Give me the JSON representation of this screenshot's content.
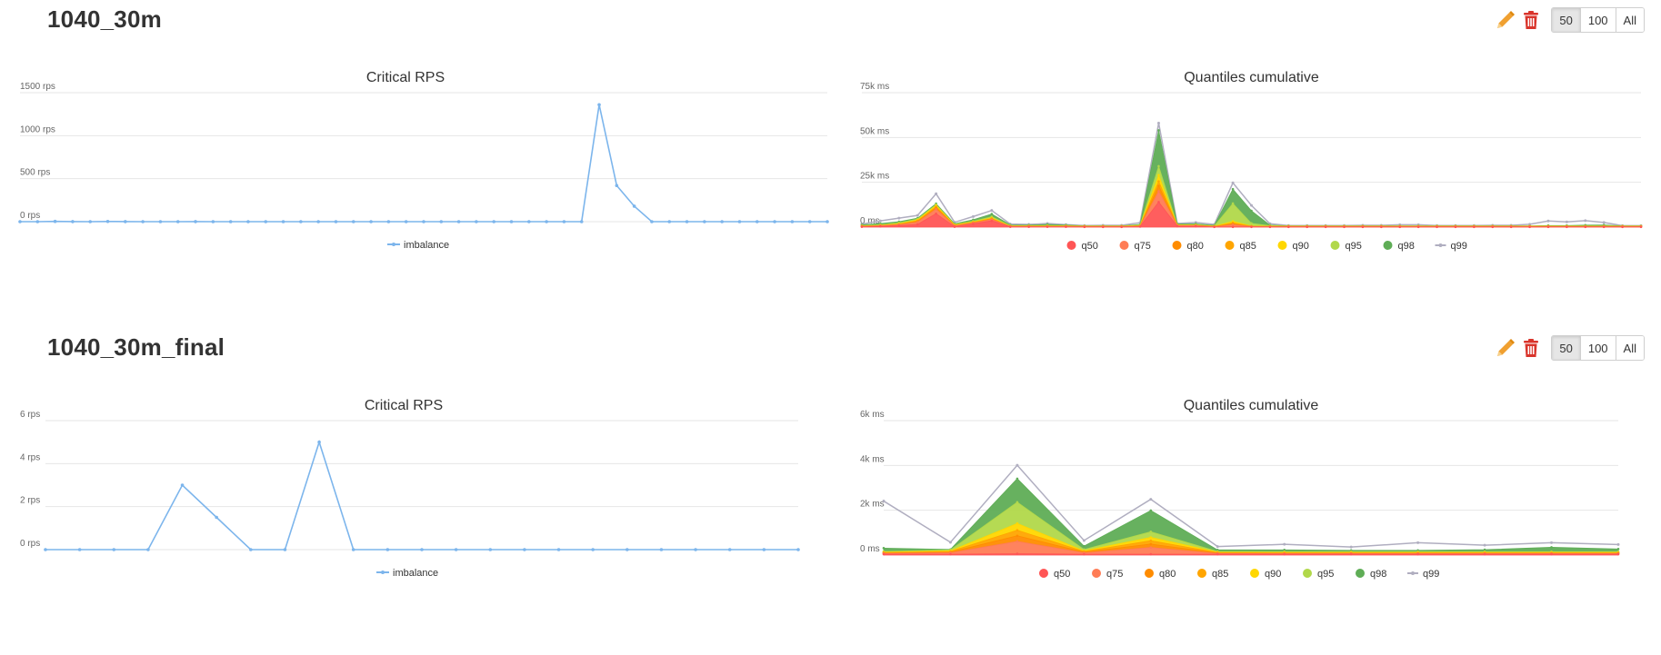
{
  "sections": [
    {
      "title": "1040_30m",
      "buttons": [
        "50",
        "100",
        "All"
      ],
      "active_button": "50",
      "icons": [
        "pencil-icon",
        "trash-icon"
      ]
    },
    {
      "title": "1040_30m_final",
      "buttons": [
        "50",
        "100",
        "All"
      ],
      "active_button": "50",
      "icons": [
        "pencil-icon",
        "trash-icon"
      ]
    }
  ],
  "colors": {
    "imbalance": "#7cb5ec",
    "q50": "#ff5555",
    "q75": "#ff7c55",
    "q80": "#ff8c00",
    "q85": "#ffa500",
    "q90": "#ffd700",
    "q95": "#b1d84a",
    "q98": "#5fad56",
    "q99": "#b0aec0",
    "edit": "#f0a030",
    "delete": "#d9342b"
  },
  "chart_data": [
    {
      "type": "line",
      "title": "Critical RPS",
      "ylim": [
        0,
        1500
      ],
      "yticks": [
        "0 rps",
        "500 rps",
        "1000 rps",
        "1500 rps"
      ],
      "ytick_values": [
        0,
        500,
        1000,
        1500
      ],
      "legend": "bottom-center",
      "grid": true,
      "series": [
        {
          "name": "imbalance",
          "values": [
            0,
            0,
            3,
            1,
            0,
            2,
            1,
            0,
            0,
            0,
            1,
            0,
            0,
            0,
            0,
            0,
            0,
            0,
            0,
            0,
            0,
            0,
            0,
            0,
            0,
            0,
            0,
            0,
            0,
            0,
            0,
            0,
            0,
            1360,
            420,
            180,
            0,
            0,
            0,
            0,
            0,
            0,
            0,
            0,
            0,
            0,
            0
          ]
        }
      ]
    },
    {
      "type": "area",
      "title": "Quantiles cumulative",
      "ylim": [
        0,
        75000
      ],
      "yticks": [
        "0 ms",
        "25k ms",
        "50k ms",
        "75k ms"
      ],
      "ytick_values": [
        0,
        25000,
        50000,
        75000
      ],
      "legend": "bottom-center",
      "grid": true,
      "stacked": true,
      "series": [
        {
          "name": "q50",
          "values": [
            200,
            400,
            800,
            1500,
            7500,
            200,
            1800,
            3500,
            200,
            200,
            200,
            200,
            100,
            100,
            100,
            300,
            14000,
            500,
            500,
            100,
            100,
            100,
            100,
            100,
            100,
            100,
            100,
            100,
            100,
            100,
            100,
            100,
            100,
            100,
            100,
            100,
            100,
            100,
            100,
            100,
            100,
            100,
            100
          ]
        },
        {
          "name": "q75",
          "values": [
            100,
            300,
            500,
            1200,
            2500,
            400,
            500,
            700,
            100,
            100,
            100,
            100,
            100,
            100,
            100,
            200,
            6000,
            300,
            300,
            100,
            1200,
            200,
            100,
            100,
            100,
            100,
            100,
            100,
            100,
            100,
            100,
            100,
            100,
            100,
            100,
            100,
            100,
            100,
            100,
            100,
            100,
            100,
            100
          ]
        },
        {
          "name": "q80",
          "values": [
            100,
            100,
            200,
            500,
            800,
            200,
            200,
            300,
            100,
            100,
            100,
            100,
            100,
            100,
            100,
            100,
            3000,
            100,
            100,
            100,
            600,
            100,
            100,
            100,
            100,
            100,
            100,
            100,
            100,
            100,
            100,
            100,
            100,
            100,
            100,
            100,
            100,
            100,
            100,
            100,
            100,
            100,
            100
          ]
        },
        {
          "name": "q85",
          "values": [
            100,
            100,
            200,
            400,
            600,
            200,
            200,
            300,
            100,
            100,
            100,
            100,
            100,
            100,
            100,
            100,
            2500,
            100,
            100,
            100,
            500,
            100,
            100,
            100,
            100,
            100,
            100,
            100,
            100,
            100,
            100,
            100,
            100,
            100,
            100,
            100,
            100,
            100,
            100,
            100,
            100,
            100,
            100
          ]
        },
        {
          "name": "q90",
          "values": [
            100,
            100,
            200,
            400,
            700,
            200,
            200,
            400,
            100,
            100,
            100,
            100,
            100,
            100,
            100,
            100,
            3500,
            100,
            100,
            100,
            800,
            100,
            100,
            100,
            100,
            100,
            100,
            100,
            100,
            100,
            100,
            100,
            100,
            100,
            100,
            100,
            100,
            100,
            100,
            100,
            100,
            100,
            100
          ]
        },
        {
          "name": "q95",
          "values": [
            200,
            300,
            500,
            500,
            400,
            300,
            400,
            600,
            200,
            200,
            300,
            200,
            100,
            100,
            100,
            300,
            5000,
            200,
            200,
            200,
            10000,
            1500,
            300,
            100,
            100,
            100,
            100,
            100,
            100,
            100,
            100,
            100,
            100,
            100,
            100,
            100,
            100,
            100,
            100,
            100,
            100,
            100,
            100
          ]
        },
        {
          "name": "q98",
          "values": [
            500,
            700,
            600,
            500,
            600,
            400,
            800,
            1500,
            400,
            300,
            600,
            300,
            100,
            100,
            100,
            400,
            20000,
            400,
            500,
            300,
            8000,
            7000,
            300,
            100,
            100,
            100,
            100,
            100,
            100,
            100,
            100,
            100,
            100,
            100,
            100,
            100,
            100,
            300,
            300,
            500,
            600,
            100,
            100
          ]
        },
        {
          "name": "q99",
          "values": [
            400,
            1500,
            2000,
            1500,
            5500,
            800,
            1800,
            2000,
            500,
            400,
            500,
            300,
            200,
            300,
            300,
            1000,
            4000,
            300,
            800,
            500,
            3500,
            3000,
            800,
            200,
            200,
            200,
            200,
            300,
            300,
            600,
            600,
            200,
            200,
            200,
            300,
            300,
            900,
            2500,
            2000,
            2500,
            1400,
            100,
            100
          ]
        }
      ]
    },
    {
      "type": "line",
      "title": "Critical RPS",
      "ylim": [
        0,
        6
      ],
      "yticks": [
        "0 rps",
        "2 rps",
        "4 rps",
        "6 rps"
      ],
      "ytick_values": [
        0,
        2,
        4,
        6
      ],
      "legend": "bottom-center",
      "grid": true,
      "series": [
        {
          "name": "imbalance",
          "values": [
            0,
            0,
            0,
            0,
            3,
            1.5,
            0,
            0,
            5,
            0,
            0,
            0,
            0,
            0,
            0,
            0,
            0,
            0,
            0,
            0,
            0,
            0,
            0
          ]
        }
      ]
    },
    {
      "type": "area",
      "title": "Quantiles cumulative",
      "ylim": [
        0,
        6000
      ],
      "yticks": [
        "0 ms",
        "2k ms",
        "4k ms",
        "6k ms"
      ],
      "ytick_values": [
        0,
        2000,
        4000,
        6000
      ],
      "legend": "bottom-center",
      "grid": true,
      "stacked": true,
      "series": [
        {
          "name": "q50",
          "values": [
            40,
            40,
            60,
            40,
            40,
            40,
            40,
            40,
            40,
            40,
            40,
            40
          ]
        },
        {
          "name": "q75",
          "values": [
            30,
            60,
            550,
            60,
            300,
            30,
            20,
            20,
            20,
            20,
            20,
            20
          ]
        },
        {
          "name": "q80",
          "values": [
            20,
            30,
            250,
            30,
            150,
            20,
            20,
            20,
            20,
            20,
            20,
            20
          ]
        },
        {
          "name": "q85",
          "values": [
            20,
            30,
            250,
            30,
            150,
            20,
            20,
            20,
            20,
            20,
            20,
            20
          ]
        },
        {
          "name": "q90",
          "values": [
            20,
            30,
            300,
            30,
            150,
            20,
            20,
            20,
            20,
            20,
            20,
            20
          ]
        },
        {
          "name": "q95",
          "values": [
            30,
            40,
            950,
            60,
            250,
            30,
            30,
            30,
            30,
            30,
            30,
            30
          ]
        },
        {
          "name": "q98",
          "values": [
            150,
            20,
            1050,
            150,
            950,
            70,
            80,
            60,
            60,
            90,
            200,
            120
          ]
        },
        {
          "name": "q99",
          "values": [
            2100,
            320,
            600,
            250,
            500,
            150,
            250,
            150,
            340,
            200,
            200,
            200
          ]
        }
      ]
    }
  ]
}
